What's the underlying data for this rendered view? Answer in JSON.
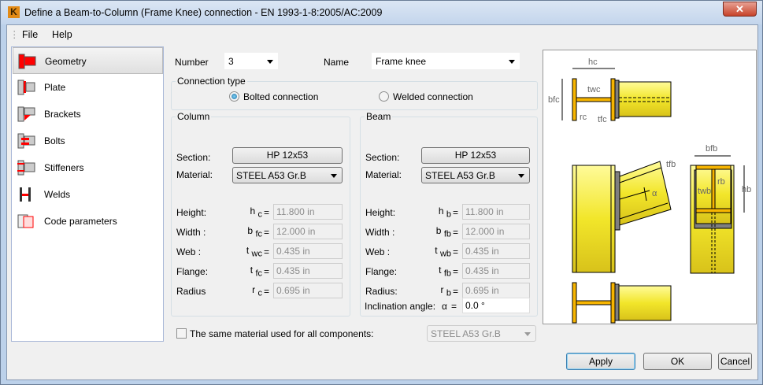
{
  "window": {
    "title": "Define a Beam-to-Column (Frame Knee) connection - EN 1993-1-8:2005/AC:2009",
    "close_label": "✕"
  },
  "menu": [
    "File",
    "Help"
  ],
  "sidebar": {
    "items": [
      {
        "label": "Geometry",
        "selected": true
      },
      {
        "label": "Plate"
      },
      {
        "label": "Brackets"
      },
      {
        "label": "Bolts"
      },
      {
        "label": "Stiffeners"
      },
      {
        "label": "Welds"
      },
      {
        "label": "Code parameters"
      }
    ]
  },
  "header": {
    "number_label": "Number",
    "number_value": "3",
    "name_label": "Name",
    "name_value": "Frame knee"
  },
  "connection_type": {
    "title": "Connection type",
    "options": [
      "Bolted connection",
      "Welded connection"
    ],
    "selected": "Bolted connection"
  },
  "column": {
    "title": "Column",
    "section_label": "Section:",
    "section": "HP 12x53",
    "material_label": "Material:",
    "material": "STEEL A53 Gr.B",
    "rows": [
      {
        "label": "Height:",
        "sym": "h",
        "sub": "c",
        "value": "11.800 in"
      },
      {
        "label": "Width :",
        "sym": "b",
        "sub": "fc",
        "value": "12.000 in"
      },
      {
        "label": "Web :",
        "sym": "t",
        "sub": "wc",
        "value": "0.435 in"
      },
      {
        "label": "Flange:",
        "sym": "t",
        "sub": "fc",
        "value": "0.435 in"
      },
      {
        "label": "Radius",
        "sym": "r",
        "sub": "c",
        "value": "0.695 in"
      }
    ]
  },
  "beam": {
    "title": "Beam",
    "section_label": "Section:",
    "section": "HP 12x53",
    "material_label": "Material:",
    "material": "STEEL A53 Gr.B",
    "rows": [
      {
        "label": "Height:",
        "sym": "h",
        "sub": "b",
        "value": "11.800 in"
      },
      {
        "label": "Width :",
        "sym": "b",
        "sub": "fb",
        "value": "12.000 in"
      },
      {
        "label": "Web :",
        "sym": "t",
        "sub": "wb",
        "value": "0.435 in"
      },
      {
        "label": "Flange:",
        "sym": "t",
        "sub": "fb",
        "value": "0.435 in"
      },
      {
        "label": "Radius:",
        "sym": "r",
        "sub": "b",
        "value": "0.695 in"
      }
    ],
    "inclination_label": "Inclination angle:",
    "inclination_sym": "α",
    "inclination_value": "0.0 °"
  },
  "eq": "=",
  "same_material": {
    "label": "The same material used for all components:",
    "checked": false,
    "value": "STEEL A53 Gr.B"
  },
  "diagram": {
    "labels": {
      "hc": "hc",
      "bfc": "bfc",
      "twc": "twc",
      "rc": "rc",
      "tfc": "tfc",
      "bfb": "bfb",
      "tfb": "tfb",
      "twb": "twb",
      "rb": "rb",
      "hb": "hb",
      "alpha": "α"
    }
  },
  "buttons": {
    "apply": "Apply",
    "ok": "OK",
    "cancel": "Cancel"
  },
  "colors": {
    "steel": "#f2e62a",
    "flange": "#f7b500",
    "plate": "#7f7f7f",
    "selected_icon": "#ff0000"
  }
}
